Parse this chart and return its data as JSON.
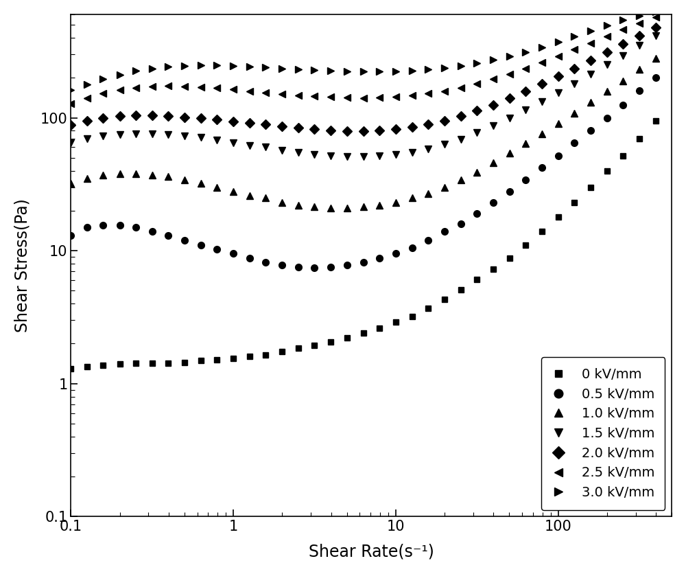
{
  "xlabel": "Shear Rate(s⁻¹)",
  "ylabel": "Shear Stress(Pa)",
  "xlim": [
    0.1,
    500
  ],
  "ylim": [
    0.1,
    600
  ],
  "background_color": "#ffffff",
  "series": [
    {
      "label": "0 kV/mm",
      "marker": "s",
      "x": [
        0.1,
        0.126,
        0.158,
        0.2,
        0.251,
        0.316,
        0.398,
        0.5,
        0.631,
        0.794,
        1.0,
        1.259,
        1.585,
        1.995,
        2.512,
        3.162,
        3.981,
        5.012,
        6.31,
        7.943,
        10.0,
        12.59,
        15.85,
        19.95,
        25.12,
        31.62,
        39.81,
        50.12,
        63.1,
        79.43,
        100,
        125.9,
        158.5,
        199.5,
        251.2,
        316.2,
        398.1
      ],
      "y": [
        1.3,
        1.35,
        1.38,
        1.4,
        1.42,
        1.42,
        1.43,
        1.45,
        1.5,
        1.52,
        1.55,
        1.6,
        1.65,
        1.75,
        1.85,
        1.95,
        2.05,
        2.2,
        2.4,
        2.6,
        2.9,
        3.2,
        3.7,
        4.3,
        5.1,
        6.1,
        7.3,
        8.8,
        11,
        14,
        18,
        23,
        30,
        40,
        52,
        70,
        95
      ]
    },
    {
      "label": "0.5 kV/mm",
      "marker": "o",
      "x": [
        0.1,
        0.126,
        0.158,
        0.2,
        0.251,
        0.316,
        0.398,
        0.5,
        0.631,
        0.794,
        1.0,
        1.259,
        1.585,
        1.995,
        2.512,
        3.162,
        3.981,
        5.012,
        6.31,
        7.943,
        10.0,
        12.59,
        15.85,
        19.95,
        25.12,
        31.62,
        39.81,
        50.12,
        63.1,
        79.43,
        100,
        125.9,
        158.5,
        199.5,
        251.2,
        316.2,
        398.1
      ],
      "y": [
        13,
        15,
        15.5,
        15.5,
        15,
        14,
        13,
        12,
        11,
        10.2,
        9.5,
        8.8,
        8.2,
        7.8,
        7.5,
        7.4,
        7.5,
        7.8,
        8.2,
        8.8,
        9.5,
        10.5,
        12,
        14,
        16,
        19,
        23,
        28,
        34,
        42,
        52,
        65,
        80,
        100,
        125,
        160,
        200
      ]
    },
    {
      "label": "1.0 kV/mm",
      "marker": "^",
      "x": [
        0.1,
        0.126,
        0.158,
        0.2,
        0.251,
        0.316,
        0.398,
        0.5,
        0.631,
        0.794,
        1.0,
        1.259,
        1.585,
        1.995,
        2.512,
        3.162,
        3.981,
        5.012,
        6.31,
        7.943,
        10.0,
        12.59,
        15.85,
        19.95,
        25.12,
        31.62,
        39.81,
        50.12,
        63.1,
        79.43,
        100,
        125.9,
        158.5,
        199.5,
        251.2,
        316.2,
        398.1
      ],
      "y": [
        32,
        35,
        37,
        38,
        38,
        37,
        36,
        34,
        32,
        30,
        28,
        26,
        25,
        23,
        22,
        21.5,
        21,
        21,
        21.5,
        22,
        23,
        25,
        27,
        30,
        34,
        39,
        46,
        54,
        64,
        76,
        90,
        108,
        130,
        158,
        190,
        230,
        280
      ]
    },
    {
      "label": "1.5 kV/mm",
      "marker": "v",
      "x": [
        0.1,
        0.126,
        0.158,
        0.2,
        0.251,
        0.316,
        0.398,
        0.5,
        0.631,
        0.794,
        1.0,
        1.259,
        1.585,
        1.995,
        2.512,
        3.162,
        3.981,
        5.012,
        6.31,
        7.943,
        10.0,
        12.59,
        15.85,
        19.95,
        25.12,
        31.62,
        39.81,
        50.12,
        63.1,
        79.43,
        100,
        125.9,
        158.5,
        199.5,
        251.2,
        316.2,
        398.1
      ],
      "y": [
        65,
        70,
        73,
        75,
        76,
        76,
        75,
        73,
        71,
        68,
        65,
        62,
        60,
        57,
        55,
        53,
        52,
        51,
        51,
        52,
        53,
        55,
        58,
        63,
        69,
        77,
        87,
        99,
        114,
        132,
        155,
        180,
        212,
        250,
        295,
        350,
        415
      ]
    },
    {
      "label": "2.0 kV/mm",
      "marker": "D",
      "x": [
        0.1,
        0.126,
        0.158,
        0.2,
        0.251,
        0.316,
        0.398,
        0.5,
        0.631,
        0.794,
        1.0,
        1.259,
        1.585,
        1.995,
        2.512,
        3.162,
        3.981,
        5.012,
        6.31,
        7.943,
        10.0,
        12.59,
        15.85,
        19.95,
        25.12,
        31.62,
        39.81,
        50.12,
        63.1,
        79.43,
        100,
        125.9,
        158.5,
        199.5,
        251.2,
        316.2,
        398.1
      ],
      "y": [
        88,
        95,
        100,
        103,
        104,
        104,
        103,
        101,
        99,
        97,
        94,
        91,
        89,
        86,
        84,
        82,
        80,
        79,
        79,
        80,
        82,
        85,
        89,
        95,
        103,
        113,
        125,
        140,
        158,
        180,
        205,
        235,
        270,
        310,
        360,
        415,
        475
      ]
    },
    {
      "label": "2.5 kV/mm",
      "marker": "<",
      "x": [
        0.1,
        0.126,
        0.158,
        0.2,
        0.251,
        0.316,
        0.398,
        0.5,
        0.631,
        0.794,
        1.0,
        1.259,
        1.585,
        1.995,
        2.512,
        3.162,
        3.981,
        5.012,
        6.31,
        7.943,
        10.0,
        12.59,
        15.85,
        19.95,
        25.12,
        31.62,
        39.81,
        50.12,
        63.1,
        79.43,
        100,
        125.9,
        158.5,
        199.5,
        251.2,
        316.2,
        398.1
      ],
      "y": [
        128,
        140,
        152,
        162,
        168,
        172,
        173,
        172,
        170,
        167,
        163,
        159,
        155,
        151,
        148,
        145,
        143,
        142,
        141,
        142,
        144,
        147,
        152,
        159,
        168,
        180,
        195,
        213,
        235,
        260,
        290,
        325,
        365,
        410,
        460,
        515,
        570
      ]
    },
    {
      "label": "3.0 kV/mm",
      "marker": ">",
      "x": [
        0.1,
        0.126,
        0.158,
        0.2,
        0.251,
        0.316,
        0.398,
        0.5,
        0.631,
        0.794,
        1.0,
        1.259,
        1.585,
        1.995,
        2.512,
        3.162,
        3.981,
        5.012,
        6.31,
        7.943,
        10.0,
        12.59,
        15.85,
        19.95,
        25.12,
        31.62,
        39.81,
        50.12,
        63.1,
        79.43,
        100,
        125.9,
        158.5,
        199.5,
        251.2,
        316.2,
        398.1
      ],
      "y": [
        162,
        178,
        195,
        210,
        225,
        235,
        242,
        246,
        248,
        248,
        246,
        243,
        239,
        235,
        231,
        228,
        225,
        223,
        222,
        222,
        223,
        226,
        230,
        236,
        245,
        257,
        272,
        290,
        312,
        338,
        370,
        408,
        450,
        495,
        542,
        588,
        630
      ]
    }
  ]
}
